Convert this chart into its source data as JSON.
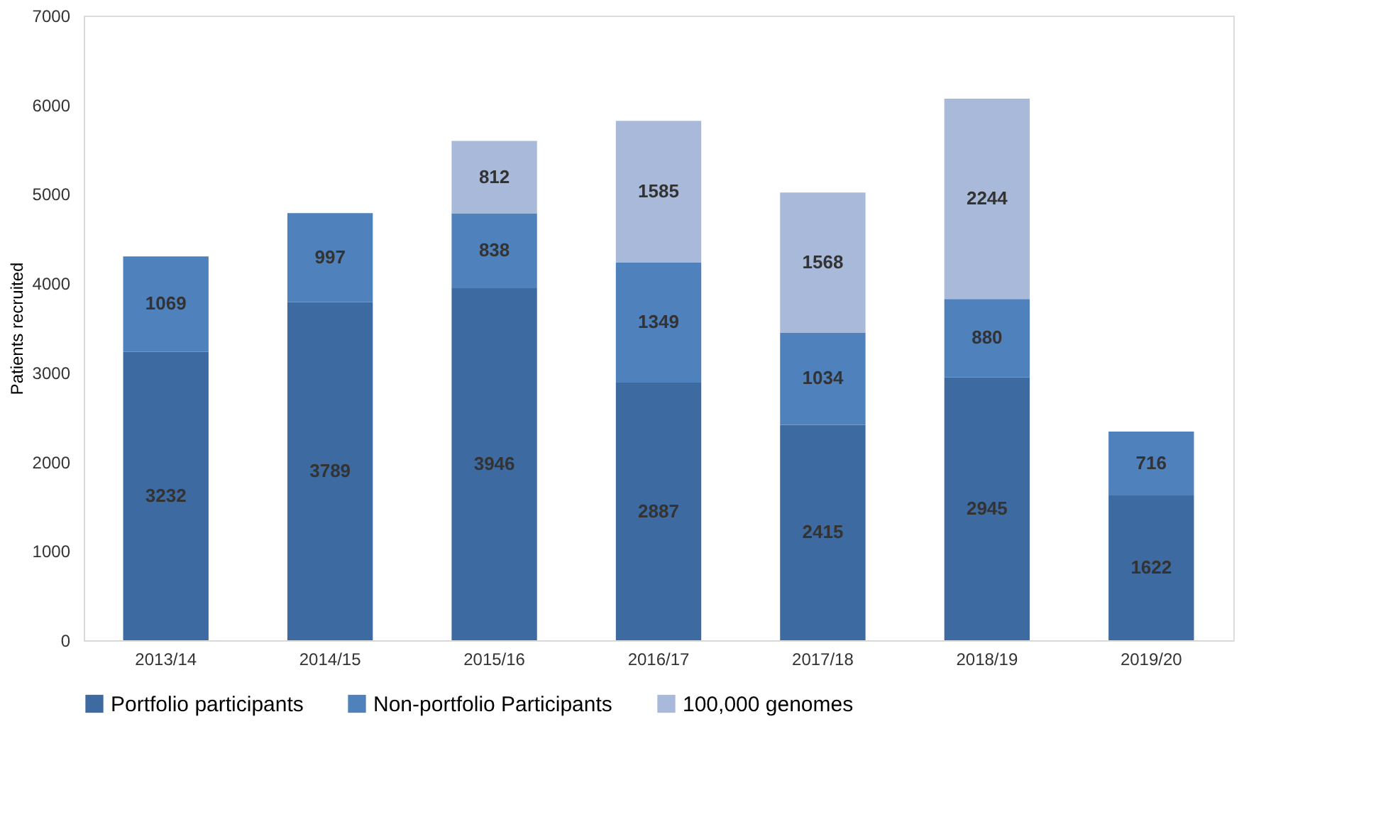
{
  "chart_data": {
    "type": "bar",
    "stacked": true,
    "ylabel": "Patients recruited",
    "categories": [
      "2013/14",
      "2014/15",
      "2015/16",
      "2016/17",
      "2017/18",
      "2018/19",
      "2019/20"
    ],
    "series": [
      {
        "name": "Portfolio participants",
        "color": "#3d6aa0",
        "values": [
          3232,
          3789,
          3946,
          2887,
          2415,
          2945,
          1622
        ]
      },
      {
        "name": "Non-portfolio Participants",
        "color": "#4f81bd",
        "values": [
          1069,
          997,
          838,
          1349,
          1034,
          880,
          716
        ]
      },
      {
        "name": "100,000 genomes",
        "color": "#a9b9d9",
        "values": [
          null,
          null,
          812,
          1585,
          1568,
          2244,
          null
        ]
      }
    ],
    "ylim": [
      0,
      7000
    ],
    "yticks": [
      0,
      1000,
      2000,
      3000,
      4000,
      5000,
      6000,
      7000
    ],
    "data_labels": true,
    "grid": false,
    "legend": "bottom"
  }
}
